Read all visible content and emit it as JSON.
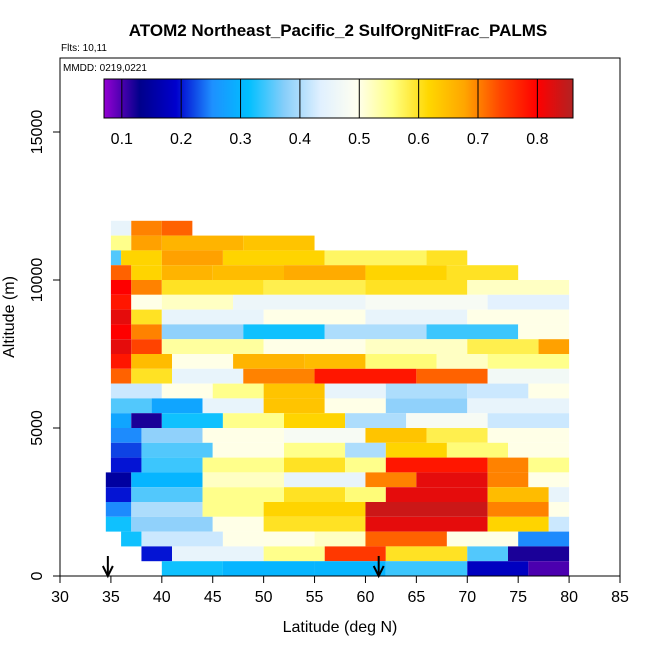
{
  "chart_data": {
    "type": "heatmap",
    "title": "ATOM2 Northeast_Pacific_2 SulfOrgNitFrac_PALMS",
    "annotations": {
      "flights": "Flts: 10,11",
      "dates": "MMDD: 0219,0221"
    },
    "xlabel": "Latitude (deg N)",
    "ylabel": "Altitude (m)",
    "xlim": [
      30,
      85
    ],
    "ylim": [
      0,
      17500
    ],
    "x_ticks": [
      30,
      35,
      40,
      45,
      50,
      55,
      60,
      65,
      70,
      75,
      80,
      85
    ],
    "y_ticks": [
      0,
      5000,
      10000,
      15000
    ],
    "colorbar": {
      "range": [
        0.07,
        0.86
      ],
      "ticks": [
        0.1,
        0.2,
        0.3,
        0.4,
        0.5,
        0.6,
        0.7,
        0.8
      ],
      "colors": [
        "#9400d3",
        "#00008b",
        "#0000cd",
        "#1e90ff",
        "#00bfff",
        "#87cefa",
        "#e0f0ff",
        "#fffff0",
        "#ffff80",
        "#ffd700",
        "#ffa500",
        "#ff4500",
        "#ff0000",
        "#b22222"
      ]
    },
    "arrows_latitude": [
      34.7,
      61.3
    ],
    "rows": [
      {
        "alt": [
          11500,
          12000
        ],
        "cells": [
          [
            35,
            37,
            0.45
          ],
          [
            37,
            40,
            0.7
          ],
          [
            40,
            43,
            0.72
          ]
        ]
      },
      {
        "alt": [
          11000,
          11500
        ],
        "cells": [
          [
            35,
            37,
            0.55
          ],
          [
            37,
            40,
            0.68
          ],
          [
            40,
            48,
            0.66
          ],
          [
            48,
            55,
            0.64
          ]
        ]
      },
      {
        "alt": [
          10500,
          11000
        ],
        "cells": [
          [
            35,
            36,
            0.35
          ],
          [
            36,
            40,
            0.62
          ],
          [
            40,
            46,
            0.68
          ],
          [
            46,
            56,
            0.62
          ],
          [
            56,
            66,
            0.57
          ],
          [
            66,
            70,
            0.6
          ]
        ]
      },
      {
        "alt": [
          10000,
          10500
        ],
        "cells": [
          [
            35,
            37,
            0.72
          ],
          [
            37,
            40,
            0.62
          ],
          [
            40,
            45,
            0.66
          ],
          [
            45,
            52,
            0.65
          ],
          [
            52,
            60,
            0.67
          ],
          [
            60,
            68,
            0.62
          ],
          [
            68,
            75,
            0.6
          ]
        ]
      },
      {
        "alt": [
          9500,
          10000
        ],
        "cells": [
          [
            35,
            37,
            0.8
          ],
          [
            37,
            40,
            0.7
          ],
          [
            40,
            50,
            0.6
          ],
          [
            50,
            60,
            0.58
          ],
          [
            60,
            70,
            0.6
          ],
          [
            70,
            80,
            0.52
          ]
        ]
      },
      {
        "alt": [
          9000,
          9500
        ],
        "cells": [
          [
            35,
            37,
            0.78
          ],
          [
            37,
            40,
            0.5
          ],
          [
            40,
            47,
            0.52
          ],
          [
            47,
            60,
            0.46
          ],
          [
            60,
            72,
            0.48
          ],
          [
            72,
            80,
            0.44
          ]
        ]
      },
      {
        "alt": [
          8500,
          9000
        ],
        "cells": [
          [
            35,
            37,
            0.82
          ],
          [
            37,
            40,
            0.6
          ],
          [
            40,
            50,
            0.45
          ],
          [
            50,
            60,
            0.5
          ],
          [
            60,
            70,
            0.45
          ],
          [
            70,
            80,
            0.5
          ]
        ]
      },
      {
        "alt": [
          8000,
          8500
        ],
        "cells": [
          [
            35,
            37,
            0.8
          ],
          [
            37,
            40,
            0.7
          ],
          [
            40,
            48,
            0.38
          ],
          [
            48,
            56,
            0.32
          ],
          [
            56,
            66,
            0.4
          ],
          [
            66,
            75,
            0.34
          ],
          [
            75,
            80,
            0.5
          ]
        ]
      },
      {
        "alt": [
          7500,
          8000
        ],
        "cells": [
          [
            35,
            37,
            0.82
          ],
          [
            37,
            40,
            0.74
          ],
          [
            40,
            50,
            0.54
          ],
          [
            50,
            60,
            0.5
          ],
          [
            60,
            70,
            0.52
          ],
          [
            70,
            77,
            0.58
          ],
          [
            77,
            80,
            0.68
          ]
        ]
      },
      {
        "alt": [
          7000,
          7500
        ],
        "cells": [
          [
            35,
            37,
            0.78
          ],
          [
            37,
            41,
            0.65
          ],
          [
            41,
            47,
            0.5
          ],
          [
            47,
            54,
            0.66
          ],
          [
            54,
            60,
            0.65
          ],
          [
            60,
            67,
            0.56
          ],
          [
            67,
            72,
            0.52
          ],
          [
            72,
            80,
            0.55
          ]
        ]
      },
      {
        "alt": [
          6500,
          7000
        ],
        "cells": [
          [
            35,
            37,
            0.72
          ],
          [
            37,
            41,
            0.6
          ],
          [
            41,
            48,
            0.45
          ],
          [
            48,
            55,
            0.7
          ],
          [
            55,
            65,
            0.78
          ],
          [
            65,
            72,
            0.72
          ],
          [
            72,
            80,
            0.47
          ]
        ]
      },
      {
        "alt": [
          6000,
          6500
        ],
        "cells": [
          [
            35,
            40,
            0.42
          ],
          [
            40,
            45,
            0.5
          ],
          [
            45,
            50,
            0.55
          ],
          [
            50,
            56,
            0.64
          ],
          [
            56,
            62,
            0.45
          ],
          [
            62,
            70,
            0.4
          ],
          [
            70,
            76,
            0.42
          ],
          [
            76,
            80,
            0.5
          ]
        ]
      },
      {
        "alt": [
          5500,
          6000
        ],
        "cells": [
          [
            35,
            39,
            0.35
          ],
          [
            39,
            44,
            0.28
          ],
          [
            44,
            50,
            0.45
          ],
          [
            50,
            56,
            0.64
          ],
          [
            56,
            62,
            0.5
          ],
          [
            62,
            70,
            0.38
          ],
          [
            70,
            80,
            0.45
          ]
        ]
      },
      {
        "alt": [
          5000,
          5500
        ],
        "cells": [
          [
            35,
            37,
            0.28
          ],
          [
            37,
            40,
            0.12
          ],
          [
            40,
            46,
            0.32
          ],
          [
            46,
            52,
            0.55
          ],
          [
            52,
            58,
            0.62
          ],
          [
            58,
            64,
            0.4
          ],
          [
            64,
            72,
            0.48
          ],
          [
            72,
            80,
            0.42
          ]
        ]
      },
      {
        "alt": [
          4500,
          5000
        ],
        "cells": [
          [
            35,
            38,
            0.25
          ],
          [
            38,
            44,
            0.38
          ],
          [
            44,
            52,
            0.5
          ],
          [
            52,
            60,
            0.48
          ],
          [
            60,
            66,
            0.64
          ],
          [
            66,
            72,
            0.58
          ],
          [
            72,
            80,
            0.5
          ]
        ]
      },
      {
        "alt": [
          4000,
          4500
        ],
        "cells": [
          [
            35,
            38,
            0.22
          ],
          [
            38,
            45,
            0.35
          ],
          [
            45,
            52,
            0.5
          ],
          [
            52,
            58,
            0.55
          ],
          [
            58,
            62,
            0.4
          ],
          [
            62,
            68,
            0.62
          ],
          [
            68,
            74,
            0.56
          ],
          [
            74,
            80,
            0.5
          ]
        ]
      },
      {
        "alt": [
          3500,
          4000
        ],
        "cells": [
          [
            35,
            38,
            0.2
          ],
          [
            38,
            44,
            0.34
          ],
          [
            44,
            52,
            0.55
          ],
          [
            52,
            58,
            0.6
          ],
          [
            58,
            62,
            0.55
          ],
          [
            62,
            72,
            0.78
          ],
          [
            72,
            76,
            0.7
          ],
          [
            76,
            80,
            0.55
          ]
        ]
      },
      {
        "alt": [
          3000,
          3500
        ],
        "cells": [
          [
            34.5,
            37,
            0.15
          ],
          [
            37,
            44,
            0.3
          ],
          [
            44,
            52,
            0.52
          ],
          [
            52,
            60,
            0.45
          ],
          [
            60,
            65,
            0.7
          ],
          [
            65,
            72,
            0.82
          ],
          [
            72,
            76,
            0.7
          ],
          [
            76,
            80,
            0.5
          ]
        ]
      },
      {
        "alt": [
          2500,
          3000
        ],
        "cells": [
          [
            34.5,
            37,
            0.2
          ],
          [
            37,
            44,
            0.35
          ],
          [
            44,
            52,
            0.55
          ],
          [
            52,
            58,
            0.6
          ],
          [
            58,
            62,
            0.56
          ],
          [
            62,
            72,
            0.82
          ],
          [
            72,
            78,
            0.65
          ],
          [
            78,
            80,
            0.45
          ]
        ]
      },
      {
        "alt": [
          2000,
          2500
        ],
        "cells": [
          [
            34.5,
            37,
            0.25
          ],
          [
            37,
            44,
            0.4
          ],
          [
            44,
            50,
            0.55
          ],
          [
            50,
            60,
            0.62
          ],
          [
            60,
            72,
            0.84
          ],
          [
            72,
            78,
            0.7
          ],
          [
            78,
            80,
            0.5
          ]
        ]
      },
      {
        "alt": [
          1500,
          2000
        ],
        "cells": [
          [
            34.5,
            37,
            0.32
          ],
          [
            37,
            45,
            0.38
          ],
          [
            45,
            50,
            0.5
          ],
          [
            50,
            60,
            0.6
          ],
          [
            60,
            72,
            0.82
          ],
          [
            72,
            78,
            0.62
          ],
          [
            78,
            80,
            0.42
          ]
        ]
      },
      {
        "alt": [
          1000,
          1500
        ],
        "cells": [
          [
            36,
            38,
            0.32
          ],
          [
            38,
            46,
            0.42
          ],
          [
            46,
            55,
            0.5
          ],
          [
            55,
            60,
            0.52
          ],
          [
            60,
            68,
            0.72
          ],
          [
            68,
            75,
            0.5
          ],
          [
            75,
            80,
            0.25
          ]
        ]
      },
      {
        "alt": [
          500,
          1000
        ],
        "cells": [
          [
            38,
            41,
            0.2
          ],
          [
            41,
            50,
            0.45
          ],
          [
            50,
            56,
            0.55
          ],
          [
            56,
            62,
            0.75
          ],
          [
            62,
            70,
            0.6
          ],
          [
            70,
            74,
            0.35
          ],
          [
            74,
            80,
            0.12
          ]
        ]
      },
      {
        "alt": [
          0,
          500
        ],
        "cells": [
          [
            40,
            46,
            0.32
          ],
          [
            46,
            55,
            0.3
          ],
          [
            55,
            62,
            0.3
          ],
          [
            62,
            70,
            0.34
          ],
          [
            70,
            76,
            0.18
          ],
          [
            76,
            80,
            0.1
          ]
        ]
      }
    ]
  }
}
